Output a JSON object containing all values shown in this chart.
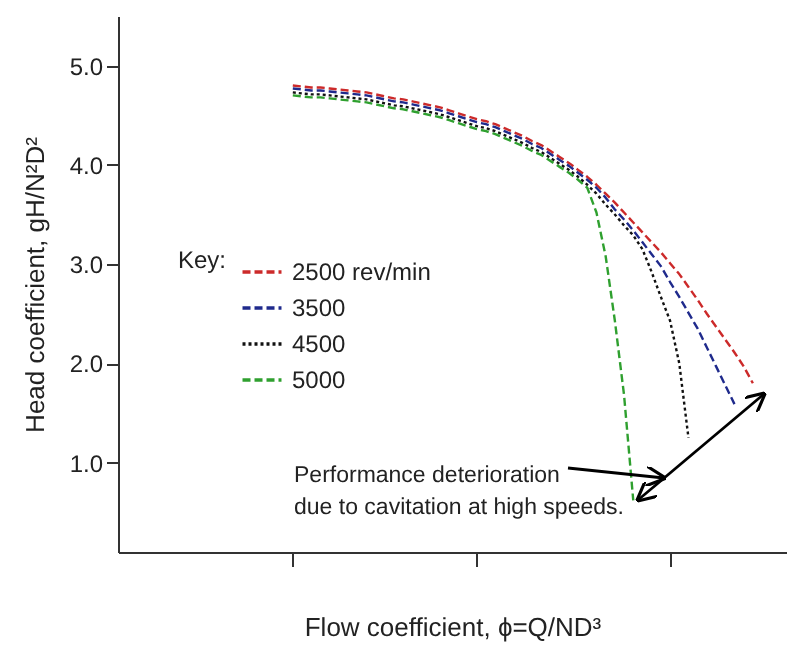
{
  "chart_data": {
    "type": "line",
    "xlabel": "Flow coefficient,  ϕ=Q/ND³",
    "ylabel": "Head coefficient,  gH/N²D²",
    "legend_title": "Key:",
    "legend": "left",
    "tick_labels": "y",
    "ylim": [
      0.1,
      5.5
    ],
    "yticks": [
      {
        "value": 1,
        "label": "1.0"
      },
      {
        "value": 2,
        "label": "2.0"
      },
      {
        "value": 3,
        "label": "3.0"
      },
      {
        "value": 4,
        "label": "4.0"
      },
      {
        "value": 5,
        "label": "5.0"
      }
    ],
    "categories": [
      null,
      null,
      null,
      null,
      null,
      null,
      null,
      null,
      null,
      null,
      null,
      null,
      null,
      null,
      null,
      null,
      null,
      null,
      null,
      null,
      null,
      null,
      null,
      null,
      null,
      null,
      null,
      null,
      null,
      null,
      null,
      null,
      null,
      null,
      null,
      null,
      null,
      null,
      null,
      null,
      null,
      null,
      null,
      null,
      null,
      null,
      null,
      null,
      null,
      null,
      null,
      null
    ],
    "annotations": [
      "Performance deterioration\ndue to cavitation at high speeds."
    ],
    "series": [
      {
        "name": "2500 rev/min",
        "color": "#cc2a2a",
        "line_style": "dashed",
        "values": [
          4.8,
          4.79,
          4.78,
          4.78,
          4.77,
          4.76,
          4.75,
          4.74,
          4.73,
          4.71,
          4.69,
          4.67,
          4.66,
          4.64,
          4.62,
          4.6,
          4.58,
          4.55,
          4.52,
          4.49,
          4.46,
          4.44,
          4.41,
          4.37,
          4.33,
          4.29,
          4.24,
          4.2,
          4.14,
          4.08,
          4.02,
          3.95,
          3.88,
          3.8,
          3.71,
          3.62,
          3.52,
          3.42,
          3.32,
          3.22,
          3.12,
          3.01,
          2.9,
          2.77,
          2.64,
          2.5,
          2.37,
          2.24,
          2.11,
          1.97,
          1.8,
          null
        ]
      },
      {
        "name": "3500",
        "color": "#1f2a8c",
        "line_style": "dashed",
        "values": [
          4.77,
          4.76,
          4.75,
          4.75,
          4.74,
          4.73,
          4.72,
          4.71,
          4.7,
          4.68,
          4.66,
          4.64,
          4.63,
          4.61,
          4.59,
          4.57,
          4.55,
          4.52,
          4.49,
          4.46,
          4.43,
          4.41,
          4.38,
          4.34,
          4.3,
          4.26,
          4.21,
          4.17,
          4.11,
          4.05,
          3.99,
          3.92,
          3.85,
          3.77,
          3.67,
          3.55,
          3.45,
          3.34,
          3.22,
          3.1,
          2.98,
          2.82,
          2.67,
          2.51,
          2.35,
          2.16,
          1.97,
          1.78,
          1.59,
          null,
          null,
          null
        ]
      },
      {
        "name": "4500",
        "color": "#111111",
        "line_style": "dotted",
        "values": [
          4.73,
          4.72,
          4.71,
          4.71,
          4.7,
          4.69,
          4.68,
          4.67,
          4.66,
          4.64,
          4.62,
          4.6,
          4.59,
          4.57,
          4.55,
          4.53,
          4.51,
          4.48,
          4.45,
          4.42,
          4.39,
          4.37,
          4.34,
          4.3,
          4.26,
          4.22,
          4.17,
          4.13,
          4.07,
          4.01,
          3.95,
          3.88,
          3.8,
          3.71,
          3.6,
          3.5,
          3.39,
          3.29,
          3.15,
          2.92,
          2.67,
          2.43,
          2.0,
          1.25,
          null,
          null,
          null,
          null,
          null,
          null,
          null,
          null
        ]
      },
      {
        "name": "5000",
        "color": "#2fa02f",
        "line_style": "dashed",
        "values": [
          4.7,
          4.69,
          4.68,
          4.68,
          4.67,
          4.66,
          4.65,
          4.64,
          4.63,
          4.61,
          4.59,
          4.57,
          4.56,
          4.54,
          4.52,
          4.5,
          4.48,
          4.45,
          4.42,
          4.39,
          4.36,
          4.34,
          4.31,
          4.27,
          4.23,
          4.19,
          4.14,
          4.1,
          4.04,
          3.98,
          3.92,
          3.85,
          3.77,
          3.52,
          3.08,
          2.43,
          1.68,
          0.62,
          null,
          null,
          null,
          null,
          null,
          null,
          null,
          null,
          null,
          null,
          null,
          null,
          null,
          null
        ]
      }
    ]
  }
}
